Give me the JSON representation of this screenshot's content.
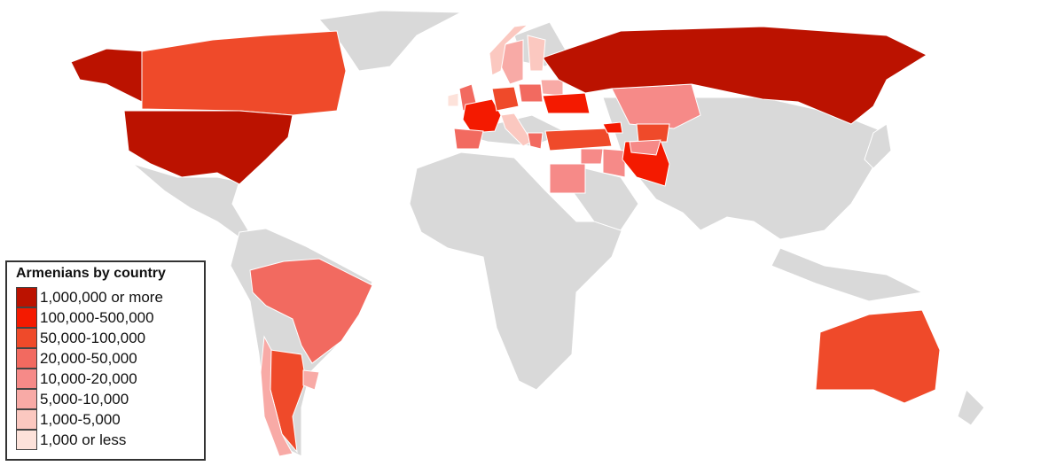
{
  "legend": {
    "title": "Armenians by country",
    "items": [
      {
        "label": "1,000,000 or more",
        "color": "#bb1200"
      },
      {
        "label": "100,000-500,000",
        "color": "#f41a00"
      },
      {
        "label": "50,000-100,000",
        "color": "#ef4a2a"
      },
      {
        "label": "20,000-50,000",
        "color": "#f26a60"
      },
      {
        "label": "10,000-20,000",
        "color": "#f68a88"
      },
      {
        "label": "5,000-10,000",
        "color": "#f8aaa6"
      },
      {
        "label": "1,000-5,000",
        "color": "#fbc8c0"
      },
      {
        "label": "1,000 or less",
        "color": "#fde2da"
      }
    ]
  },
  "map": {
    "no_data_color": "#d9d9d9",
    "border_color": "#ffffff",
    "country_classes": {
      "united-states": 0,
      "russia": 0,
      "alaska": 0,
      "france": 1,
      "iran": 1,
      "ukraine": 1,
      "georgia": 1,
      "canada": 2,
      "australia": 2,
      "argentina": 2,
      "turkey": 2,
      "germany": 2,
      "uzbekistan": 2,
      "brazil": 3,
      "spain": 3,
      "uk": 3,
      "greece": 3,
      "poland": 3,
      "kazakhstan": 4,
      "egypt": 4,
      "iraq": 4,
      "syria": 4,
      "turkmenistan": 4,
      "chile": 5,
      "sweden": 5,
      "uruguay": 5,
      "belarus": 5,
      "norway": 6,
      "finland": 6,
      "italy": 6,
      "ireland": 7
    }
  }
}
